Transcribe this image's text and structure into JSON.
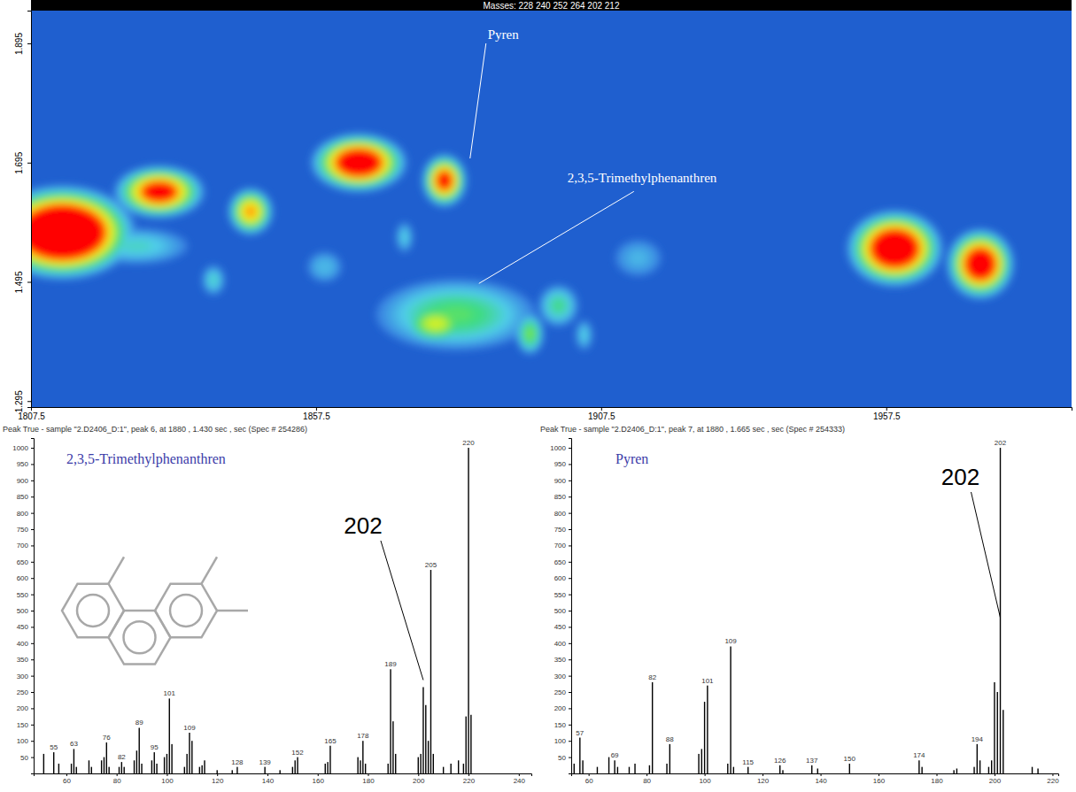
{
  "chart_data": [
    {
      "type": "contour",
      "title": "Masses:  228 240 252 264 202 212",
      "xlim": [
        1807.5,
        1990
      ],
      "ylim": [
        1.285,
        1.95
      ],
      "xticks": [
        1807.5,
        1857.5,
        1907.5,
        1957.5
      ],
      "yticks": [
        1.295,
        1.495,
        1.695,
        1.895
      ],
      "peaks": [
        {
          "x": 1813,
          "y": 1.578,
          "x_width": 26,
          "y_width": 0.16,
          "intensity": 1.8
        },
        {
          "x": 1826,
          "y": 1.555,
          "x_width": 18,
          "y_width": 0.06,
          "intensity": 0.38
        },
        {
          "x": 1830,
          "y": 1.646,
          "x_width": 16,
          "y_width": 0.09,
          "intensity": 1.1
        },
        {
          "x": 1846,
          "y": 1.613,
          "x_width": 8,
          "y_width": 0.08,
          "intensity": 0.85
        },
        {
          "x": 1865,
          "y": 1.695,
          "x_width": 17,
          "y_width": 0.1,
          "intensity": 1.3
        },
        {
          "x": 1880,
          "y": 1.665,
          "x_width": 8,
          "y_width": 0.09,
          "intensity": 1.05
        },
        {
          "x": 1882,
          "y": 1.44,
          "x_width": 28,
          "y_width": 0.12,
          "intensity": 0.5
        },
        {
          "x": 1878.5,
          "y": 1.425,
          "x_width": 12,
          "y_width": 0.07,
          "intensity": 0.68
        },
        {
          "x": 1895,
          "y": 1.408,
          "x_width": 5,
          "y_width": 0.07,
          "intensity": 0.55
        },
        {
          "x": 1900,
          "y": 1.455,
          "x_width": 7,
          "y_width": 0.07,
          "intensity": 0.45
        },
        {
          "x": 1959,
          "y": 1.551,
          "x_width": 17,
          "y_width": 0.13,
          "intensity": 1.4
        },
        {
          "x": 1974,
          "y": 1.525,
          "x_width": 12,
          "y_width": 0.12,
          "intensity": 1.25
        },
        {
          "x": 1839.5,
          "y": 1.498,
          "x_width": 4,
          "y_width": 0.05,
          "intensity": 0.38
        },
        {
          "x": 1873,
          "y": 1.57,
          "x_width": 3,
          "y_width": 0.05,
          "intensity": 0.35
        },
        {
          "x": 1859,
          "y": 1.52,
          "x_width": 6,
          "y_width": 0.05,
          "intensity": 0.32
        },
        {
          "x": 1914,
          "y": 1.535,
          "x_width": 8,
          "y_width": 0.06,
          "intensity": 0.3
        },
        {
          "x": 1904.5,
          "y": 1.406,
          "x_width": 3,
          "y_width": 0.05,
          "intensity": 0.35
        }
      ],
      "annotations": [
        {
          "text": "Pyren",
          "x": 1880,
          "y": 1.665
        },
        {
          "text": "2,3,5-Trimethylphenanthren",
          "x": 1880,
          "y": 1.43
        }
      ]
    },
    {
      "type": "bar",
      "header": "Peak True - sample \"2.D2406_D:1\", peak 6, at 1880 , 1.430 sec , sec (Spec # 254286)",
      "title": "2,3,5-Trimethylphenanthren",
      "color": "#000000",
      "xlim": [
        47,
        245
      ],
      "ylim": [
        0,
        1030
      ],
      "xticks": [
        60,
        80,
        100,
        120,
        140,
        160,
        180,
        200,
        220,
        240
      ],
      "yticks": [
        50,
        100,
        150,
        200,
        250,
        300,
        350,
        400,
        450,
        500,
        550,
        600,
        650,
        700,
        750,
        800,
        850,
        900,
        950,
        1000
      ],
      "x": [
        51,
        55,
        57,
        62,
        63,
        64,
        69,
        70,
        74,
        75,
        76,
        77,
        81,
        82,
        83,
        87,
        88,
        89,
        90,
        94,
        95,
        96,
        99,
        100,
        101,
        102,
        107,
        108,
        109,
        110,
        113,
        114,
        115,
        120,
        126,
        128,
        139,
        145,
        150,
        151,
        152,
        163,
        164,
        165,
        176,
        177,
        178,
        179,
        188,
        189,
        190,
        191,
        200,
        201,
        202,
        203,
        204,
        205,
        206,
        210,
        213,
        216,
        218,
        219,
        220,
        221
      ],
      "values": [
        60,
        65,
        30,
        30,
        75,
        20,
        40,
        20,
        40,
        50,
        95,
        20,
        20,
        35,
        20,
        40,
        70,
        140,
        30,
        40,
        65,
        30,
        50,
        60,
        230,
        90,
        20,
        60,
        125,
        100,
        20,
        25,
        40,
        10,
        10,
        20,
        20,
        10,
        20,
        40,
        50,
        30,
        35,
        85,
        50,
        40,
        100,
        30,
        30,
        320,
        160,
        60,
        50,
        60,
        265,
        210,
        100,
        625,
        60,
        20,
        30,
        40,
        30,
        175,
        1000,
        180
      ],
      "peak_labels": [
        55,
        63,
        76,
        82,
        89,
        95,
        101,
        109,
        128,
        139,
        152,
        165,
        178,
        189,
        205,
        220
      ],
      "annotations": [
        {
          "text": "202",
          "x": 202
        }
      ]
    },
    {
      "type": "bar",
      "header": "Peak True - sample \"2.D2406_D:1\", peak 7, at 1880 , 1.665 sec , sec (Spec # 254333)",
      "title": "Pyren",
      "color": "#000000",
      "xlim": [
        54,
        222
      ],
      "ylim": [
        0,
        1030
      ],
      "xticks": [
        60,
        80,
        100,
        120,
        140,
        160,
        180,
        200,
        220
      ],
      "yticks": [
        50,
        100,
        150,
        200,
        250,
        300,
        350,
        400,
        450,
        500,
        550,
        600,
        650,
        700,
        750,
        800,
        850,
        900,
        950,
        1000
      ],
      "x": [
        55,
        57,
        58,
        63,
        67,
        69,
        70,
        74,
        76,
        81,
        82,
        87,
        88,
        98,
        99,
        100,
        101,
        108,
        109,
        110,
        115,
        126,
        127,
        137,
        139,
        150,
        174,
        175,
        186,
        187,
        193,
        194,
        195,
        198,
        199,
        200,
        201,
        202,
        203,
        213,
        215
      ],
      "values": [
        30,
        110,
        40,
        20,
        50,
        40,
        20,
        20,
        30,
        25,
        280,
        30,
        90,
        60,
        75,
        220,
        270,
        30,
        390,
        20,
        20,
        25,
        10,
        25,
        15,
        30,
        40,
        20,
        10,
        15,
        20,
        90,
        40,
        20,
        40,
        280,
        250,
        1000,
        195,
        20,
        15
      ],
      "peak_labels": [
        57,
        69,
        82,
        88,
        101,
        109,
        115,
        126,
        137,
        150,
        174,
        194,
        202
      ],
      "annotations": [
        {
          "text": "202",
          "x": 202
        }
      ]
    }
  ]
}
